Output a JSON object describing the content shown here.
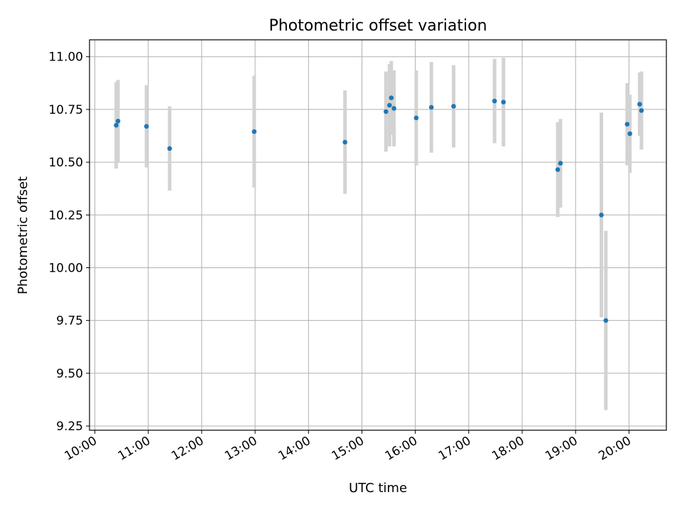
{
  "chart_data": {
    "type": "scatter",
    "title": "Photometric offset variation",
    "xlabel": "UTC time",
    "ylabel": "Photometric offset",
    "xlim": [
      "09:54",
      "20:42"
    ],
    "ylim": [
      9.23,
      11.08
    ],
    "x_ticks": [
      "10:00",
      "11:00",
      "12:00",
      "13:00",
      "14:00",
      "15:00",
      "16:00",
      "17:00",
      "18:00",
      "19:00",
      "20:00"
    ],
    "y_ticks": [
      "9.25",
      "9.50",
      "9.75",
      "10.00",
      "10.25",
      "10.50",
      "10.75",
      "11.00"
    ],
    "grid": true,
    "point_color": "#1f77b4",
    "errorbar_color": "#d3d3d3",
    "points": [
      {
        "x": "10:24",
        "y": 10.675,
        "err": 0.205
      },
      {
        "x": "10:26",
        "y": 10.695,
        "err": 0.195
      },
      {
        "x": "10:58",
        "y": 10.67,
        "err": 0.195
      },
      {
        "x": "11:24",
        "y": 10.565,
        "err": 0.2
      },
      {
        "x": "12:59",
        "y": 10.645,
        "err": 0.265
      },
      {
        "x": "14:41",
        "y": 10.595,
        "err": 0.245
      },
      {
        "x": "15:27",
        "y": 10.74,
        "err": 0.19
      },
      {
        "x": "15:31",
        "y": 10.77,
        "err": 0.195
      },
      {
        "x": "15:33",
        "y": 10.805,
        "err": 0.175
      },
      {
        "x": "15:36",
        "y": 10.755,
        "err": 0.18
      },
      {
        "x": "16:01",
        "y": 10.71,
        "err": 0.225
      },
      {
        "x": "16:18",
        "y": 10.76,
        "err": 0.215
      },
      {
        "x": "16:43",
        "y": 10.765,
        "err": 0.195
      },
      {
        "x": "17:29",
        "y": 10.79,
        "err": 0.2
      },
      {
        "x": "17:39",
        "y": 10.785,
        "err": 0.21
      },
      {
        "x": "18:40",
        "y": 10.465,
        "err": 0.225
      },
      {
        "x": "18:43",
        "y": 10.495,
        "err": 0.21
      },
      {
        "x": "19:29",
        "y": 10.25,
        "err": 0.485
      },
      {
        "x": "19:34",
        "y": 9.75,
        "err": 0.425
      },
      {
        "x": "19:58",
        "y": 10.68,
        "err": 0.195
      },
      {
        "x": "20:01",
        "y": 10.635,
        "err": 0.185
      },
      {
        "x": "20:12",
        "y": 10.775,
        "err": 0.15
      },
      {
        "x": "20:14",
        "y": 10.745,
        "err": 0.185
      }
    ]
  }
}
